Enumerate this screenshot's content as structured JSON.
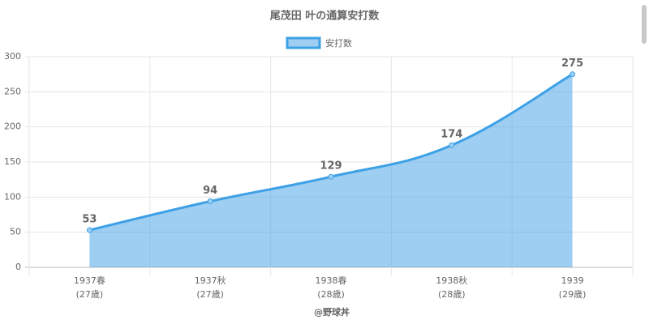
{
  "chart_data": {
    "type": "area",
    "title": "尾茂田 叶の通算安打数",
    "x_label": "@野球丼",
    "categories": [
      [
        "1937春",
        "(27歳)"
      ],
      [
        "1937秋",
        "(27歳)"
      ],
      [
        "1938春",
        "(28歳)"
      ],
      [
        "1938秋",
        "(28歳)"
      ],
      [
        "1939",
        "(29歳)"
      ]
    ],
    "series": [
      {
        "name": "安打数",
        "color": "#3ea0e6",
        "values": [
          53,
          94,
          129,
          174,
          275
        ]
      }
    ],
    "ylim": [
      0,
      300
    ],
    "yticks": [
      0,
      50,
      100,
      150,
      200,
      250,
      300
    ],
    "grid": true,
    "legend": "top"
  }
}
